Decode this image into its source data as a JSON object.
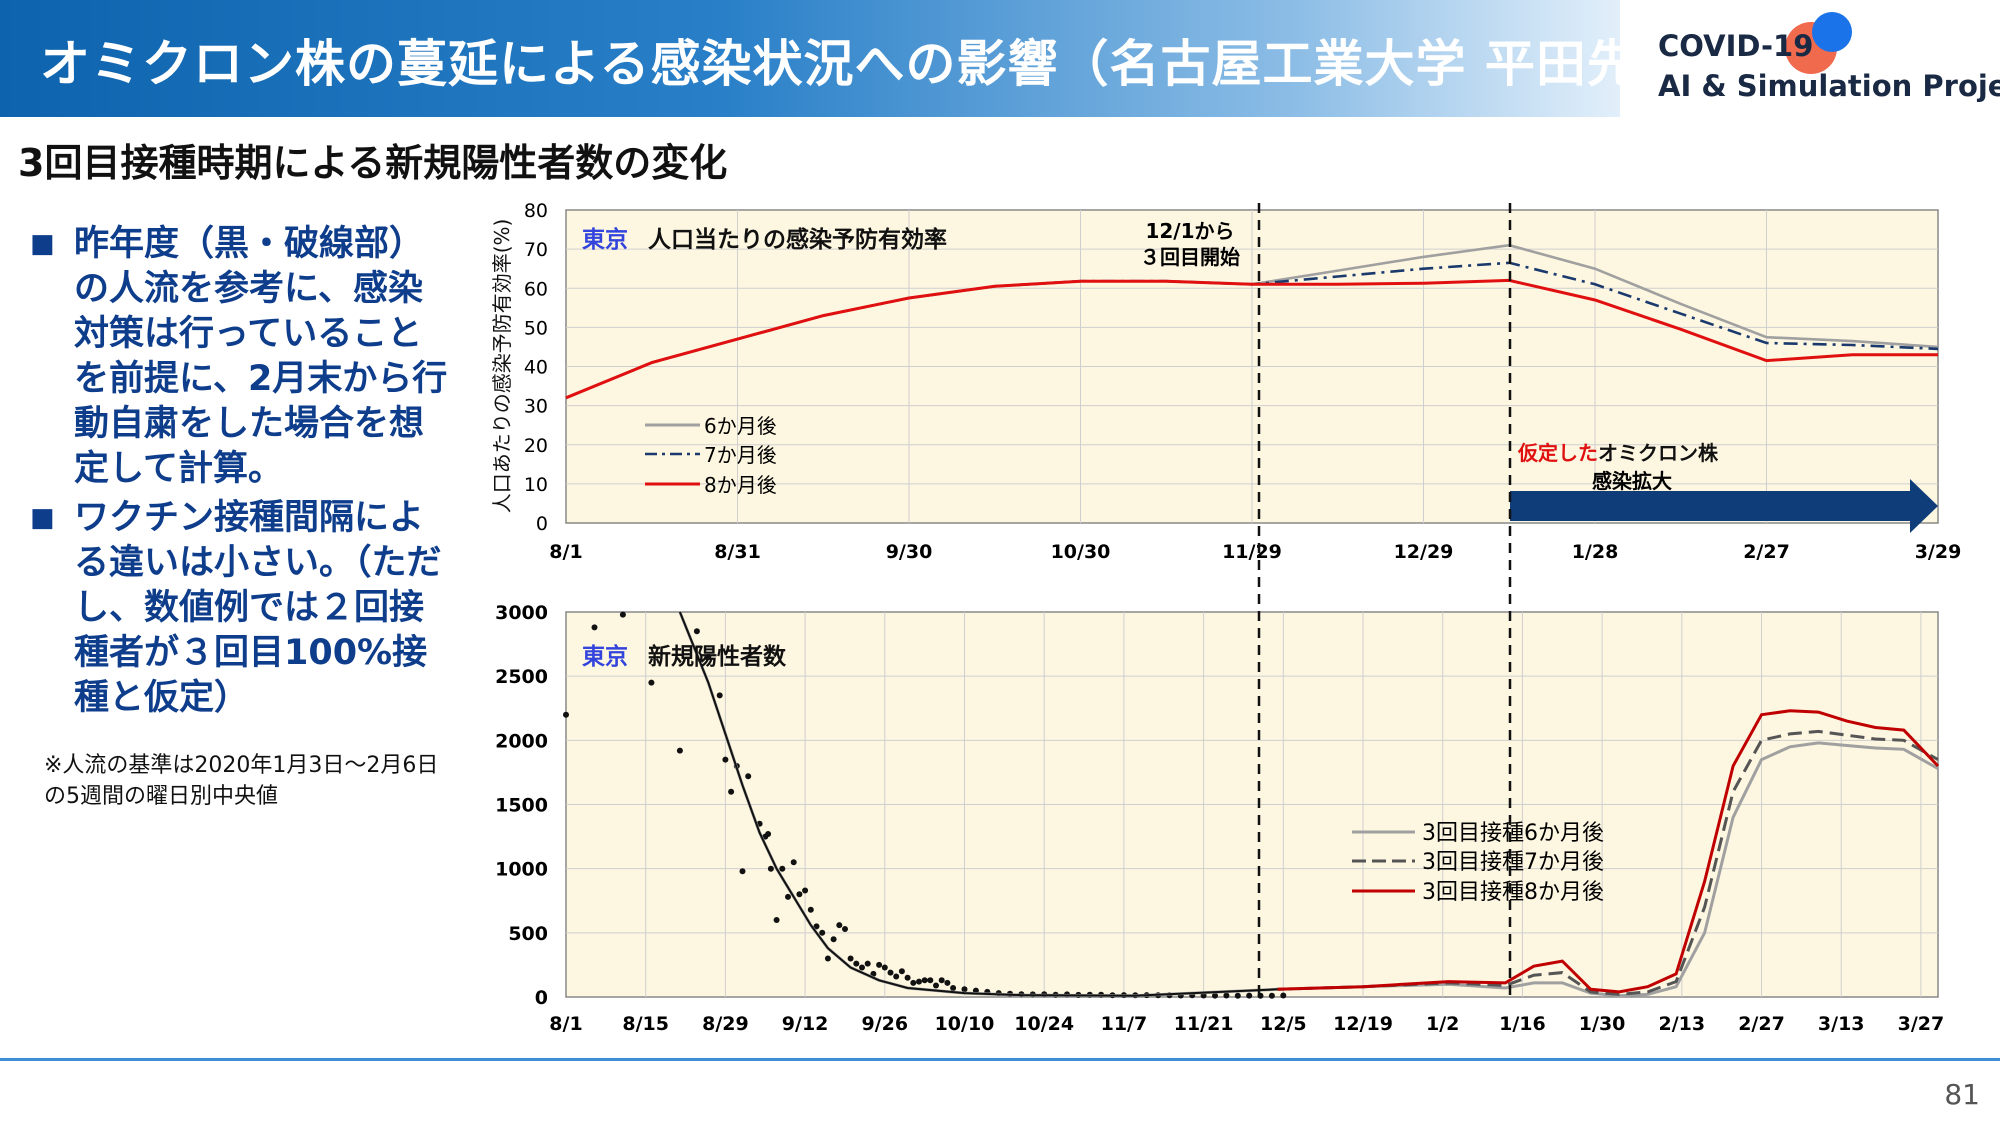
{
  "header": {
    "title": "オミクロン株の蔓延による感染状況への影響（名古屋工業大学 平田先生）",
    "brand_line1": "COVID-19",
    "brand_line2": "AI & Simulation Project"
  },
  "subtitle": "3回目接種時期による新規陽性者数の変化",
  "bullets": [
    "昨年度（黒・破線部）の人流を参考に、感染対策は行っていることを前提に、2月末から行動自粛をした場合を想定して計算。",
    "ワクチン接種間隔による違いは小さい。（ただし、数値例では２回接種者が３回目100%接種と仮定）"
  ],
  "note": "※人流の基準は2020年1月3日〜2月6日の5週間の曜日別中央値",
  "page_number": "81",
  "colors": {
    "accent": "#0d63ad",
    "plot_bg": "#fdf6e0",
    "red": "#e01010",
    "gray": "#a0a0a0",
    "navy": "#1a3a6e",
    "arrow": "#0f3d7a"
  },
  "chart_data": [
    {
      "type": "line",
      "region": "東京",
      "title": "人口当たりの感染予防有効率",
      "ylabel": "人口あたりの感染予防有効率(%)",
      "ylim": [
        0,
        80
      ],
      "yticks": [
        "80",
        "70",
        "60",
        "50",
        "40",
        "30",
        "20",
        "10",
        "0"
      ],
      "xlabels": [
        "8/1",
        "8/31",
        "9/30",
        "10/30",
        "11/29",
        "12/29",
        "1/28",
        "2/27",
        "3/29"
      ],
      "annotation_start_line1": "12/1から",
      "annotation_start_line2": "３回目開始",
      "annotation_omicron_red": "仮定した",
      "annotation_omicron_black": "オミクロン株",
      "annotation_omicron_line2": "感染拡大",
      "x": [
        "8/1",
        "8/16",
        "8/31",
        "9/15",
        "9/30",
        "10/15",
        "10/30",
        "11/14",
        "11/29",
        "12/14",
        "12/29",
        "1/12",
        "1/28",
        "2/12",
        "2/27",
        "3/14",
        "3/29"
      ],
      "series": [
        {
          "name": "6か月後",
          "values": [
            32,
            41,
            47,
            53,
            57.5,
            60.5,
            61.8,
            61.8,
            61,
            64.5,
            68,
            71,
            65,
            56,
            47.5,
            46.5,
            45
          ],
          "color": "#a0a0a0",
          "dash": "solid"
        },
        {
          "name": "7か月後",
          "values": [
            32,
            41,
            47,
            53,
            57.5,
            60.5,
            61.8,
            61.8,
            61,
            63,
            65,
            66.5,
            61,
            53.5,
            46,
            45.5,
            44.5
          ],
          "color": "#1a3a6e",
          "dash": "dashdot"
        },
        {
          "name": "8か月後",
          "values": [
            32,
            41,
            47,
            53,
            57.5,
            60.5,
            61.8,
            61.8,
            61,
            61,
            61.3,
            62,
            57,
            49.5,
            41.5,
            43,
            43
          ],
          "color": "#e01010",
          "dash": "solid"
        }
      ]
    },
    {
      "type": "line",
      "region": "東京",
      "title": "新規陽性者数",
      "ylim": [
        0,
        3000
      ],
      "yticks": [
        "3000",
        "2500",
        "2000",
        "1500",
        "1000",
        "500",
        "0"
      ],
      "xlabels": [
        "8/1",
        "8/15",
        "8/29",
        "9/12",
        "9/26",
        "10/10",
        "10/24",
        "11/7",
        "11/21",
        "12/5",
        "12/19",
        "1/2",
        "1/16",
        "1/30",
        "2/13",
        "2/27",
        "3/13",
        "3/27"
      ],
      "observed_points": [
        [
          0,
          2200
        ],
        [
          5,
          2880
        ],
        [
          10,
          2980
        ],
        [
          15,
          2450
        ],
        [
          20,
          1920
        ],
        [
          23,
          2850
        ],
        [
          25,
          2650
        ],
        [
          27,
          2350
        ],
        [
          28,
          1850
        ],
        [
          29,
          1600
        ],
        [
          30,
          1800
        ],
        [
          31,
          980
        ],
        [
          32,
          1720
        ],
        [
          34,
          1350
        ],
        [
          35,
          1250
        ],
        [
          35.5,
          1270
        ],
        [
          36,
          1000
        ],
        [
          37,
          600
        ],
        [
          38,
          1000
        ],
        [
          39,
          780
        ],
        [
          40,
          1050
        ],
        [
          41,
          800
        ],
        [
          42,
          830
        ],
        [
          43,
          680
        ],
        [
          44,
          550
        ],
        [
          45,
          500
        ],
        [
          46,
          300
        ],
        [
          47,
          450
        ],
        [
          48,
          560
        ],
        [
          49,
          530
        ],
        [
          50,
          300
        ],
        [
          51,
          260
        ],
        [
          52,
          230
        ],
        [
          53,
          260
        ],
        [
          54,
          180
        ],
        [
          55,
          250
        ],
        [
          56,
          230
        ],
        [
          57,
          190
        ],
        [
          58,
          160
        ],
        [
          59,
          200
        ],
        [
          60,
          150
        ],
        [
          61,
          110
        ],
        [
          62,
          120
        ],
        [
          63,
          130
        ],
        [
          64,
          130
        ],
        [
          65,
          90
        ],
        [
          66,
          130
        ],
        [
          67,
          110
        ],
        [
          68,
          70
        ],
        [
          70,
          60
        ],
        [
          72,
          50
        ],
        [
          74,
          40
        ],
        [
          76,
          30
        ],
        [
          78,
          25
        ],
        [
          80,
          22
        ],
        [
          82,
          20
        ],
        [
          84,
          22
        ],
        [
          86,
          18
        ],
        [
          88,
          20
        ],
        [
          90,
          16
        ],
        [
          92,
          17
        ],
        [
          94,
          18
        ],
        [
          96,
          14
        ],
        [
          98,
          15
        ],
        [
          100,
          14
        ],
        [
          102,
          15
        ],
        [
          104,
          13
        ],
        [
          106,
          14
        ],
        [
          108,
          12
        ],
        [
          110,
          13
        ],
        [
          112,
          12
        ],
        [
          114,
          11
        ],
        [
          116,
          12
        ],
        [
          118,
          10
        ],
        [
          120,
          11
        ],
        [
          122,
          10
        ],
        [
          124,
          10
        ],
        [
          126,
          12
        ]
      ],
      "x_days": [
        0,
        5,
        10,
        15,
        20,
        25,
        28,
        31,
        34,
        37,
        40,
        43,
        46,
        50,
        55,
        60,
        70,
        80,
        100,
        125,
        140,
        155,
        165,
        170,
        175,
        180,
        185,
        190,
        195,
        200,
        205,
        210,
        215,
        220,
        225,
        230,
        235,
        241
      ],
      "series": [
        {
          "name": "3回目接種6か月後",
          "values": [
            null,
            null,
            null,
            null,
            3000,
            2450,
            2050,
            1650,
            1280,
            1000,
            780,
            560,
            380,
            230,
            130,
            70,
            30,
            15,
            10,
            60,
            80,
            100,
            70,
            110,
            110,
            30,
            10,
            20,
            80,
            500,
            1400,
            1850,
            1950,
            1980,
            1960,
            1940,
            1930,
            1780
          ],
          "color": "#a0a0a0",
          "dash": "solid"
        },
        {
          "name": "3回目接種7か月後",
          "values": [
            null,
            null,
            null,
            null,
            null,
            null,
            null,
            null,
            null,
            null,
            null,
            null,
            null,
            null,
            null,
            null,
            null,
            null,
            null,
            60,
            80,
            110,
            90,
            170,
            190,
            40,
            20,
            40,
            120,
            700,
            1600,
            2000,
            2050,
            2070,
            2040,
            2010,
            2000,
            1850
          ],
          "color": "#555555",
          "dash": "dashed"
        },
        {
          "name": "3回目接種8か月後",
          "values": [
            null,
            null,
            null,
            null,
            null,
            null,
            null,
            null,
            null,
            null,
            null,
            null,
            null,
            null,
            null,
            null,
            null,
            null,
            null,
            60,
            80,
            120,
            110,
            240,
            280,
            60,
            40,
            80,
            180,
            900,
            1800,
            2200,
            2230,
            2220,
            2150,
            2100,
            2080,
            1800
          ],
          "color": "#c00000",
          "dash": "solid"
        }
      ]
    }
  ]
}
